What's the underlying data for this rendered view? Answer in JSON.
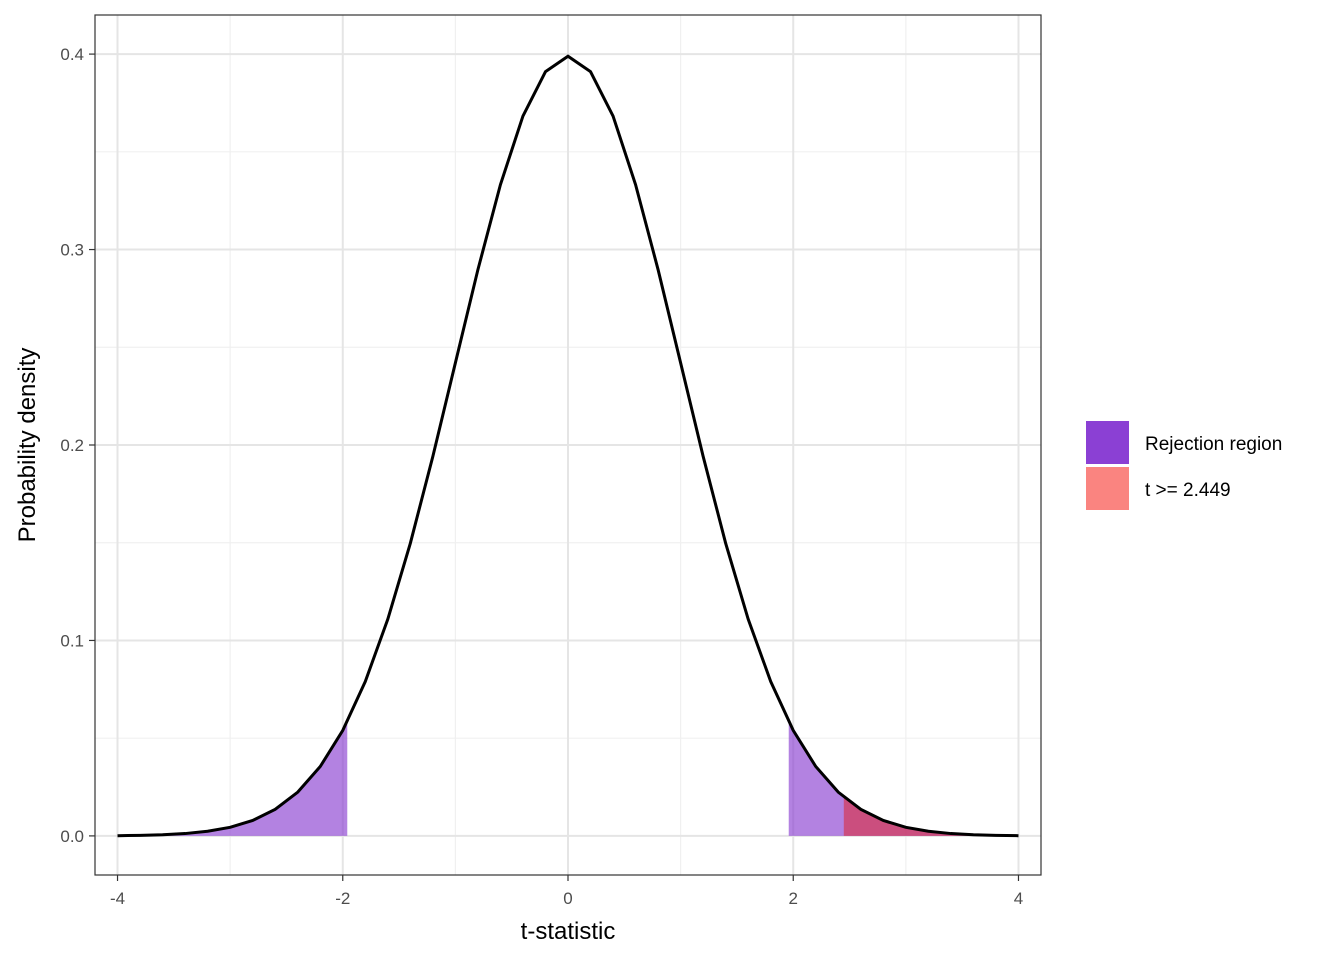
{
  "chart_data": {
    "type": "area",
    "title": "",
    "xlabel": "t-statistic",
    "ylabel": "Probability density",
    "xlim": [
      -4.2,
      4.2
    ],
    "ylim": [
      -0.02,
      0.42
    ],
    "x_ticks": [
      -4,
      -2,
      0,
      2,
      4
    ],
    "x_tick_labels": [
      "-4",
      "-2",
      "0",
      "2",
      "4"
    ],
    "y_ticks": [
      0.0,
      0.1,
      0.2,
      0.3,
      0.4
    ],
    "y_tick_labels": [
      "0.0",
      "0.1",
      "0.2",
      "0.3",
      "0.4"
    ],
    "grid": true,
    "legend_position": "right",
    "curve": {
      "x": [
        -4.0,
        -3.8,
        -3.6,
        -3.4,
        -3.2,
        -3.0,
        -2.8,
        -2.6,
        -2.4,
        -2.2,
        -2.0,
        -1.8,
        -1.6,
        -1.4,
        -1.2,
        -1.0,
        -0.8,
        -0.6,
        -0.4,
        -0.2,
        0.0,
        0.2,
        0.4,
        0.6,
        0.8,
        1.0,
        1.2,
        1.4,
        1.6,
        1.8,
        2.0,
        2.2,
        2.4,
        2.6,
        2.8,
        3.0,
        3.2,
        3.4,
        3.6,
        3.8,
        4.0
      ],
      "y": [
        0.0001,
        0.0003,
        0.0006,
        0.0012,
        0.0024,
        0.0044,
        0.0079,
        0.0136,
        0.0224,
        0.0355,
        0.054,
        0.079,
        0.1109,
        0.1497,
        0.1942,
        0.242,
        0.2897,
        0.3332,
        0.3683,
        0.391,
        0.3989,
        0.391,
        0.3683,
        0.3332,
        0.2897,
        0.242,
        0.1942,
        0.1497,
        0.1109,
        0.079,
        0.054,
        0.0355,
        0.0224,
        0.0136,
        0.0079,
        0.0044,
        0.0024,
        0.0012,
        0.0006,
        0.0003,
        0.0001
      ],
      "color": "#000000"
    },
    "series": [
      {
        "name": "Rejection region",
        "ranges": [
          [
            -4.0,
            -1.96
          ],
          [
            1.96,
            4.0
          ]
        ],
        "color": "#8a3fd1",
        "alpha": 0.65
      },
      {
        "name": "t >= 2.449",
        "ranges": [
          [
            2.449,
            4.0
          ]
        ],
        "color": "#e41a1c",
        "alpha": 0.5
      }
    ]
  },
  "legend": {
    "items": [
      {
        "label": "Rejection region",
        "color": "#8b40d4"
      },
      {
        "label": "t >= 2.449",
        "color": "#fa8480"
      }
    ]
  }
}
